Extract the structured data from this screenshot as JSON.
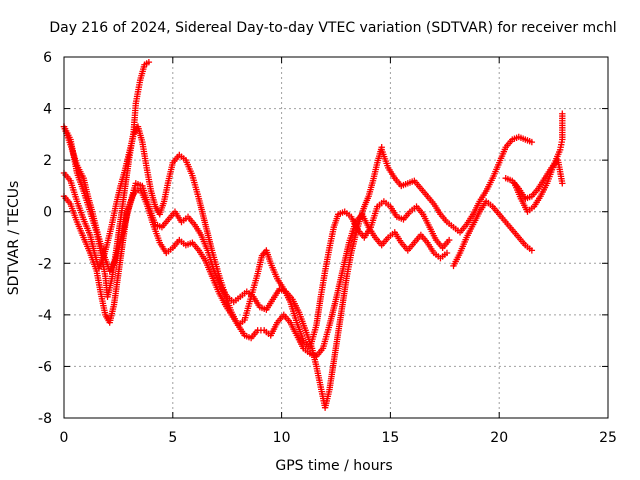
{
  "chart_data": {
    "type": "scatter",
    "title": "Day 216 of 2024, Sidereal Day-to-day VTEC variation (SDTVAR) for receiver mchl",
    "xlabel": "GPS time / hours",
    "ylabel": "SDTVAR / TECUs",
    "xlim": [
      0,
      25
    ],
    "ylim": [
      -8,
      6
    ],
    "xticks": [
      0,
      5,
      10,
      15,
      20,
      25
    ],
    "yticks": [
      -8,
      -6,
      -4,
      -2,
      0,
      2,
      4,
      6
    ],
    "grid": true,
    "legend": "none",
    "marker": "+",
    "color": "#ff0000",
    "series": [
      {
        "points": [
          [
            0.0,
            3.3
          ],
          [
            0.3,
            2.8
          ],
          [
            0.6,
            1.5
          ],
          [
            0.9,
            0.8
          ],
          [
            1.2,
            0.0
          ],
          [
            1.5,
            -0.8
          ],
          [
            1.7,
            -1.6
          ],
          [
            1.9,
            -2.5
          ],
          [
            2.0,
            -3.3
          ],
          [
            2.2,
            -2.6
          ],
          [
            2.4,
            -1.5
          ],
          [
            2.6,
            -0.3
          ],
          [
            2.8,
            0.9
          ],
          [
            3.0,
            2.1
          ],
          [
            3.2,
            3.1
          ],
          [
            3.3,
            4.2
          ],
          [
            3.5,
            5.1
          ],
          [
            3.7,
            5.7
          ],
          [
            3.9,
            5.8
          ]
        ]
      },
      {
        "points": [
          [
            0.0,
            1.5
          ],
          [
            0.3,
            1.2
          ],
          [
            0.6,
            0.4
          ],
          [
            0.9,
            -0.3
          ],
          [
            1.2,
            -0.9
          ],
          [
            1.4,
            -1.6
          ],
          [
            1.6,
            -2.2
          ],
          [
            1.8,
            -1.8
          ],
          [
            2.0,
            -1.2
          ],
          [
            2.2,
            -0.5
          ],
          [
            2.4,
            0.3
          ],
          [
            2.6,
            1.0
          ],
          [
            2.8,
            1.6
          ],
          [
            3.0,
            2.3
          ],
          [
            3.2,
            3.0
          ],
          [
            3.4,
            3.3
          ],
          [
            3.6,
            2.7
          ],
          [
            3.8,
            1.7
          ],
          [
            4.0,
            0.8
          ],
          [
            4.2,
            0.2
          ],
          [
            4.4,
            -0.1
          ],
          [
            4.6,
            0.4
          ],
          [
            4.8,
            1.2
          ],
          [
            5.0,
            1.9
          ],
          [
            5.3,
            2.2
          ],
          [
            5.6,
            2.0
          ],
          [
            5.9,
            1.4
          ],
          [
            6.2,
            0.5
          ],
          [
            6.5,
            -0.5
          ],
          [
            6.8,
            -1.5
          ],
          [
            7.1,
            -2.4
          ],
          [
            7.4,
            -3.2
          ],
          [
            7.7,
            -3.9
          ],
          [
            8.0,
            -4.4
          ],
          [
            8.3,
            -4.2
          ],
          [
            8.6,
            -3.3
          ],
          [
            8.9,
            -2.4
          ],
          [
            9.1,
            -1.7
          ],
          [
            9.3,
            -1.5
          ],
          [
            9.5,
            -2.0
          ],
          [
            9.8,
            -2.6
          ],
          [
            10.1,
            -3.0
          ],
          [
            10.4,
            -3.5
          ],
          [
            10.7,
            -4.3
          ],
          [
            11.0,
            -5.0
          ],
          [
            11.3,
            -5.3
          ],
          [
            11.6,
            -4.4
          ],
          [
            11.8,
            -3.3
          ],
          [
            12.0,
            -2.3
          ],
          [
            12.2,
            -1.4
          ],
          [
            12.4,
            -0.6
          ],
          [
            12.6,
            -0.1
          ],
          [
            12.9,
            0.0
          ],
          [
            13.2,
            -0.2
          ],
          [
            13.5,
            -0.7
          ],
          [
            13.8,
            -1.0
          ],
          [
            14.1,
            -0.6
          ],
          [
            14.4,
            0.2
          ],
          [
            14.7,
            0.4
          ],
          [
            15.0,
            0.2
          ],
          [
            15.3,
            -0.2
          ],
          [
            15.6,
            -0.3
          ],
          [
            15.9,
            0.0
          ],
          [
            16.2,
            0.2
          ],
          [
            16.5,
            -0.1
          ],
          [
            16.8,
            -0.6
          ],
          [
            17.1,
            -1.1
          ],
          [
            17.4,
            -1.4
          ],
          [
            17.7,
            -1.1
          ]
        ]
      },
      {
        "points": [
          [
            0.0,
            3.3
          ],
          [
            0.3,
            2.6
          ],
          [
            0.6,
            1.8
          ],
          [
            0.9,
            1.3
          ],
          [
            1.1,
            0.6
          ],
          [
            1.3,
            0.0
          ],
          [
            1.5,
            -0.7
          ],
          [
            1.8,
            -1.6
          ],
          [
            2.1,
            -2.3
          ],
          [
            2.4,
            -1.8
          ],
          [
            2.7,
            -0.8
          ],
          [
            3.0,
            0.2
          ],
          [
            3.3,
            1.1
          ],
          [
            3.6,
            1.0
          ],
          [
            3.9,
            0.2
          ],
          [
            4.2,
            -0.5
          ],
          [
            4.5,
            -0.6
          ],
          [
            4.8,
            -0.3
          ],
          [
            5.1,
            0.0
          ],
          [
            5.4,
            -0.4
          ],
          [
            5.7,
            -0.2
          ],
          [
            6.0,
            -0.5
          ],
          [
            6.3,
            -0.9
          ],
          [
            6.6,
            -1.5
          ],
          [
            6.9,
            -2.3
          ],
          [
            7.2,
            -2.9
          ],
          [
            7.5,
            -3.3
          ],
          [
            7.8,
            -3.5
          ],
          [
            8.1,
            -3.3
          ],
          [
            8.4,
            -3.1
          ],
          [
            8.7,
            -3.3
          ],
          [
            9.0,
            -3.7
          ],
          [
            9.3,
            -3.8
          ],
          [
            9.6,
            -3.4
          ],
          [
            9.9,
            -3.0
          ],
          [
            10.2,
            -3.1
          ],
          [
            10.5,
            -3.4
          ],
          [
            10.8,
            -3.9
          ],
          [
            11.1,
            -4.6
          ],
          [
            11.4,
            -5.3
          ],
          [
            11.6,
            -6.0
          ],
          [
            11.8,
            -6.8
          ],
          [
            12.0,
            -7.6
          ],
          [
            12.2,
            -6.9
          ],
          [
            12.4,
            -5.8
          ],
          [
            12.6,
            -4.7
          ],
          [
            12.8,
            -3.6
          ],
          [
            13.0,
            -2.5
          ],
          [
            13.2,
            -1.6
          ],
          [
            13.4,
            -0.9
          ],
          [
            13.6,
            -0.3
          ],
          [
            13.8,
            0.2
          ],
          [
            14.0,
            0.6
          ],
          [
            14.2,
            1.2
          ],
          [
            14.4,
            1.9
          ],
          [
            14.6,
            2.5
          ]
        ]
      },
      {
        "points": [
          [
            14.6,
            2.4
          ],
          [
            14.9,
            1.7
          ],
          [
            15.2,
            1.3
          ],
          [
            15.5,
            1.0
          ],
          [
            15.8,
            1.1
          ],
          [
            16.1,
            1.2
          ],
          [
            16.4,
            0.9
          ],
          [
            16.7,
            0.6
          ],
          [
            17.0,
            0.3
          ],
          [
            17.3,
            -0.1
          ],
          [
            17.6,
            -0.4
          ],
          [
            17.9,
            -0.6
          ],
          [
            18.2,
            -0.8
          ],
          [
            18.5,
            -0.5
          ],
          [
            18.8,
            -0.1
          ],
          [
            19.1,
            0.4
          ],
          [
            19.4,
            0.8
          ],
          [
            19.7,
            1.3
          ],
          [
            20.0,
            1.9
          ],
          [
            20.3,
            2.5
          ],
          [
            20.6,
            2.8
          ],
          [
            20.9,
            2.9
          ],
          [
            21.2,
            2.8
          ],
          [
            21.5,
            2.7
          ]
        ]
      },
      {
        "points": [
          [
            0.0,
            0.6
          ],
          [
            0.3,
            0.3
          ],
          [
            0.6,
            -0.4
          ],
          [
            0.9,
            -1.0
          ],
          [
            1.2,
            -1.6
          ],
          [
            1.5,
            -2.3
          ],
          [
            1.7,
            -3.2
          ],
          [
            1.9,
            -4.0
          ],
          [
            2.1,
            -4.3
          ],
          [
            2.3,
            -3.6
          ],
          [
            2.5,
            -2.4
          ],
          [
            2.7,
            -1.2
          ],
          [
            2.9,
            0.0
          ],
          [
            3.2,
            0.7
          ],
          [
            3.5,
            0.9
          ],
          [
            3.8,
            0.3
          ],
          [
            4.1,
            -0.5
          ],
          [
            4.4,
            -1.2
          ],
          [
            4.7,
            -1.6
          ],
          [
            5.0,
            -1.4
          ],
          [
            5.3,
            -1.1
          ],
          [
            5.6,
            -1.3
          ],
          [
            5.9,
            -1.2
          ],
          [
            6.2,
            -1.5
          ],
          [
            6.5,
            -1.9
          ],
          [
            6.8,
            -2.5
          ],
          [
            7.1,
            -3.1
          ],
          [
            7.4,
            -3.6
          ],
          [
            7.7,
            -4.0
          ],
          [
            8.0,
            -4.4
          ],
          [
            8.3,
            -4.8
          ],
          [
            8.6,
            -4.9
          ],
          [
            8.9,
            -4.6
          ],
          [
            9.2,
            -4.6
          ],
          [
            9.5,
            -4.8
          ],
          [
            9.8,
            -4.3
          ],
          [
            10.1,
            -4.0
          ],
          [
            10.4,
            -4.3
          ],
          [
            10.7,
            -4.8
          ],
          [
            11.0,
            -5.3
          ],
          [
            11.3,
            -5.5
          ],
          [
            11.6,
            -5.6
          ],
          [
            11.9,
            -5.3
          ],
          [
            12.2,
            -4.4
          ],
          [
            12.5,
            -3.4
          ],
          [
            12.8,
            -2.3
          ],
          [
            13.1,
            -1.2
          ],
          [
            13.4,
            -0.4
          ],
          [
            13.7,
            -0.1
          ],
          [
            14.0,
            -0.6
          ],
          [
            14.3,
            -1.0
          ],
          [
            14.6,
            -1.3
          ],
          [
            14.9,
            -1.0
          ],
          [
            15.2,
            -0.8
          ],
          [
            15.5,
            -1.2
          ],
          [
            15.8,
            -1.5
          ],
          [
            16.1,
            -1.2
          ],
          [
            16.4,
            -0.9
          ],
          [
            16.7,
            -1.2
          ],
          [
            17.0,
            -1.6
          ],
          [
            17.3,
            -1.8
          ],
          [
            17.6,
            -1.6
          ]
        ]
      },
      {
        "points": [
          [
            17.9,
            -2.1
          ],
          [
            18.2,
            -1.6
          ],
          [
            18.5,
            -1.0
          ],
          [
            18.8,
            -0.5
          ],
          [
            19.1,
            0.0
          ],
          [
            19.4,
            0.4
          ],
          [
            19.7,
            0.2
          ],
          [
            20.0,
            -0.1
          ],
          [
            20.3,
            -0.4
          ],
          [
            20.6,
            -0.7
          ],
          [
            20.9,
            -1.0
          ],
          [
            21.2,
            -1.3
          ],
          [
            21.5,
            -1.5
          ]
        ]
      },
      {
        "points": [
          [
            20.3,
            1.3
          ],
          [
            20.6,
            1.2
          ],
          [
            20.9,
            0.9
          ],
          [
            21.2,
            0.5
          ],
          [
            21.5,
            0.6
          ],
          [
            21.8,
            0.9
          ],
          [
            22.1,
            1.3
          ],
          [
            22.4,
            1.7
          ],
          [
            22.7,
            2.0
          ],
          [
            22.9,
            1.1
          ]
        ]
      },
      {
        "points": [
          [
            20.7,
            1.1
          ],
          [
            21.0,
            0.5
          ],
          [
            21.3,
            0.0
          ],
          [
            21.6,
            0.2
          ],
          [
            21.9,
            0.6
          ],
          [
            22.2,
            1.1
          ],
          [
            22.5,
            1.8
          ],
          [
            22.8,
            2.4
          ],
          [
            22.9,
            2.8
          ],
          [
            22.9,
            3.8
          ]
        ]
      }
    ]
  }
}
